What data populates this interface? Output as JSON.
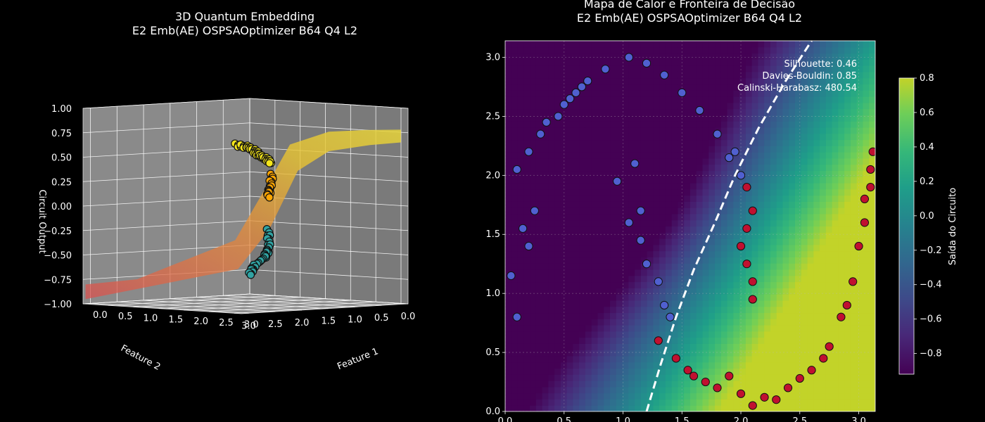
{
  "left_panel": {
    "title_line1": "3D Quantum Embedding",
    "title_line2": "E2 Emb(AE) OSPSAOptimizer B64 Q4 L2"
  },
  "right_panel": {
    "title_line1": "Mapa de Calor e Fronteira de Decisão",
    "title_line2": "E2 Emb(AE) OSPSAOptimizer B64 Q4 L2"
  },
  "metrics": {
    "silhouette": "Silhouette: 0.46",
    "davies": "Davies-Bouldin: 0.85",
    "calinski": "Calinski-Harabasz: 480.54"
  },
  "colorbar": {
    "label": "Saída do Circuito"
  },
  "chart_data": [
    {
      "type": "scatter",
      "subtype": "3d_surface_scatter",
      "title": "3D Quantum Embedding\nE2 Emb(AE) OSPSAOptimizer B64 Q4 L2",
      "xlabel": "Feature 1",
      "ylabel": "Feature 2",
      "zlabel": "Circuit Output",
      "x_ticks": [
        "0.0",
        "0.5",
        "1.0",
        "1.5",
        "2.0",
        "2.5",
        "3.0"
      ],
      "y_ticks": [
        "0.0",
        "0.5",
        "1.0",
        "1.5",
        "2.0",
        "2.5",
        "3.0"
      ],
      "z_ticks": [
        "−1.00",
        "−0.75",
        "−0.50",
        "−0.25",
        "0.00",
        "0.25",
        "0.50",
        "0.75",
        "1.00"
      ],
      "zlim": [
        -1.0,
        1.0
      ],
      "grid": true,
      "series": [
        {
          "color": "#f5e61b",
          "points": [
            [
              3.0,
              3.1,
              0.72
            ],
            [
              2.8,
              2.7,
              0.68
            ],
            [
              2.5,
              2.3,
              0.62
            ],
            [
              2.2,
              1.9,
              0.55
            ],
            [
              2.0,
              1.6,
              0.5
            ],
            [
              1.8,
              1.3,
              0.44
            ]
          ]
        },
        {
          "color": "#ffa500",
          "points": [
            [
              1.6,
              1.1,
              0.3
            ],
            [
              1.4,
              0.95,
              0.15
            ],
            [
              1.2,
              0.8,
              0.05
            ]
          ]
        },
        {
          "color": "#30a3a3",
          "points": [
            [
              1.0,
              0.6,
              -0.3
            ],
            [
              0.8,
              0.4,
              -0.5
            ],
            [
              0.6,
              0.3,
              -0.6
            ],
            [
              0.3,
              0.2,
              -0.7
            ],
            [
              0.1,
              0.1,
              -0.8
            ]
          ]
        }
      ]
    },
    {
      "type": "heatmap",
      "subtype": "heatmap_with_decision_boundary",
      "title": "Mapa de Calor e Fronteira de Decisão\nE2 Emb(AE) OSPSAOptimizer B64 Q4 L2",
      "xlim": [
        0.0,
        3.14
      ],
      "ylim": [
        0.0,
        3.14
      ],
      "x_ticks": [
        0.0,
        0.5,
        1.0,
        1.5,
        2.0,
        2.5,
        3.0
      ],
      "y_ticks": [
        0.0,
        0.5,
        1.0,
        1.5,
        2.0,
        2.5,
        3.0
      ],
      "grid": true,
      "colorbar": {
        "label": "Saída do Circuito",
        "range": [
          -0.92,
          0.8
        ],
        "ticks": [
          -0.8,
          -0.6,
          -0.4,
          -0.2,
          0.0,
          0.2,
          0.4,
          0.6,
          0.8
        ],
        "colormap": "viridis"
      },
      "decision_boundary": [
        [
          1.2,
          0.0
        ],
        [
          1.32,
          0.4
        ],
        [
          1.45,
          0.8
        ],
        [
          1.6,
          1.2
        ],
        [
          1.78,
          1.6
        ],
        [
          1.95,
          2.0
        ],
        [
          2.15,
          2.4
        ],
        [
          2.38,
          2.8
        ],
        [
          2.6,
          3.14
        ]
      ],
      "classes": [
        {
          "color": "#5060d0",
          "name": "",
          "points": [
            [
              0.05,
              1.15
            ],
            [
              0.1,
              0.8
            ],
            [
              0.2,
              1.4
            ],
            [
              0.25,
              1.7
            ],
            [
              0.1,
              2.05
            ],
            [
              0.2,
              2.2
            ],
            [
              0.3,
              2.35
            ],
            [
              0.45,
              2.5
            ],
            [
              0.55,
              2.65
            ],
            [
              0.7,
              2.8
            ],
            [
              0.85,
              2.9
            ],
            [
              1.05,
              3.0
            ],
            [
              1.2,
              2.95
            ],
            [
              1.35,
              2.85
            ],
            [
              1.5,
              2.7
            ],
            [
              1.65,
              2.55
            ],
            [
              1.8,
              2.35
            ],
            [
              1.9,
              2.15
            ],
            [
              2.0,
              2.0
            ],
            [
              1.05,
              1.6
            ],
            [
              1.15,
              1.7
            ],
            [
              1.15,
              1.45
            ],
            [
              1.2,
              1.25
            ],
            [
              1.3,
              1.1
            ],
            [
              1.35,
              0.9
            ],
            [
              1.4,
              0.8
            ],
            [
              0.5,
              2.6
            ],
            [
              0.65,
              2.75
            ],
            [
              0.95,
              1.95
            ],
            [
              1.1,
              2.1
            ],
            [
              1.95,
              2.2
            ],
            [
              0.15,
              1.55
            ],
            [
              0.35,
              2.45
            ],
            [
              0.6,
              2.7
            ]
          ]
        },
        {
          "color": "#c01030",
          "name": "",
          "points": [
            [
              1.3,
              0.6
            ],
            [
              1.45,
              0.45
            ],
            [
              1.6,
              0.3
            ],
            [
              1.8,
              0.2
            ],
            [
              2.0,
              0.15
            ],
            [
              2.2,
              0.12
            ],
            [
              2.4,
              0.2
            ],
            [
              2.6,
              0.35
            ],
            [
              2.75,
              0.55
            ],
            [
              2.85,
              0.8
            ],
            [
              2.95,
              1.1
            ],
            [
              3.0,
              1.4
            ],
            [
              3.05,
              1.8
            ],
            [
              3.1,
              2.05
            ],
            [
              3.12,
              2.2
            ],
            [
              2.05,
              1.9
            ],
            [
              2.1,
              1.7
            ],
            [
              2.05,
              1.55
            ],
            [
              2.0,
              1.4
            ],
            [
              2.05,
              1.25
            ],
            [
              2.1,
              1.1
            ],
            [
              2.1,
              0.95
            ],
            [
              1.9,
              0.3
            ],
            [
              2.1,
              0.05
            ],
            [
              2.3,
              0.1
            ],
            [
              2.5,
              0.28
            ],
            [
              2.7,
              0.45
            ],
            [
              2.9,
              0.9
            ],
            [
              3.05,
              1.6
            ],
            [
              3.1,
              1.9
            ],
            [
              1.55,
              0.35
            ],
            [
              1.7,
              0.25
            ]
          ]
        }
      ]
    }
  ]
}
